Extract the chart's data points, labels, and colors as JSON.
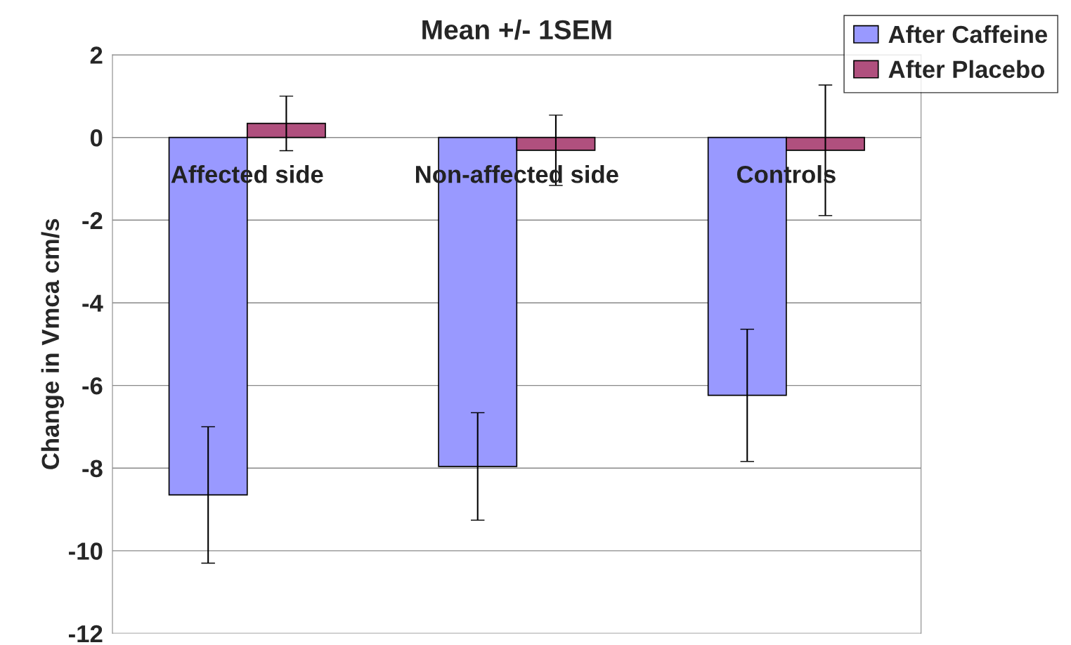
{
  "chart_data": {
    "type": "bar",
    "title": "Mean +/- 1SEM",
    "ylabel": "Change in Vmca cm/s",
    "categories": [
      "Affected side",
      "Non-affected side",
      "Controls"
    ],
    "series": [
      {
        "name": "After Caffeine",
        "color": "#9999ff",
        "values": [
          -8.65,
          -7.96,
          -6.24
        ],
        "errors": [
          1.65,
          1.3,
          1.6
        ]
      },
      {
        "name": "After Placebo",
        "color": "#b0507e",
        "values": [
          0.34,
          -0.31,
          -0.31
        ],
        "errors": [
          0.66,
          0.85,
          1.58
        ]
      }
    ],
    "ylim": [
      -12,
      2
    ],
    "yticks": [
      -12,
      -10,
      -8,
      -6,
      -4,
      -2,
      0,
      2
    ],
    "grid": "y",
    "legend": "top right"
  }
}
